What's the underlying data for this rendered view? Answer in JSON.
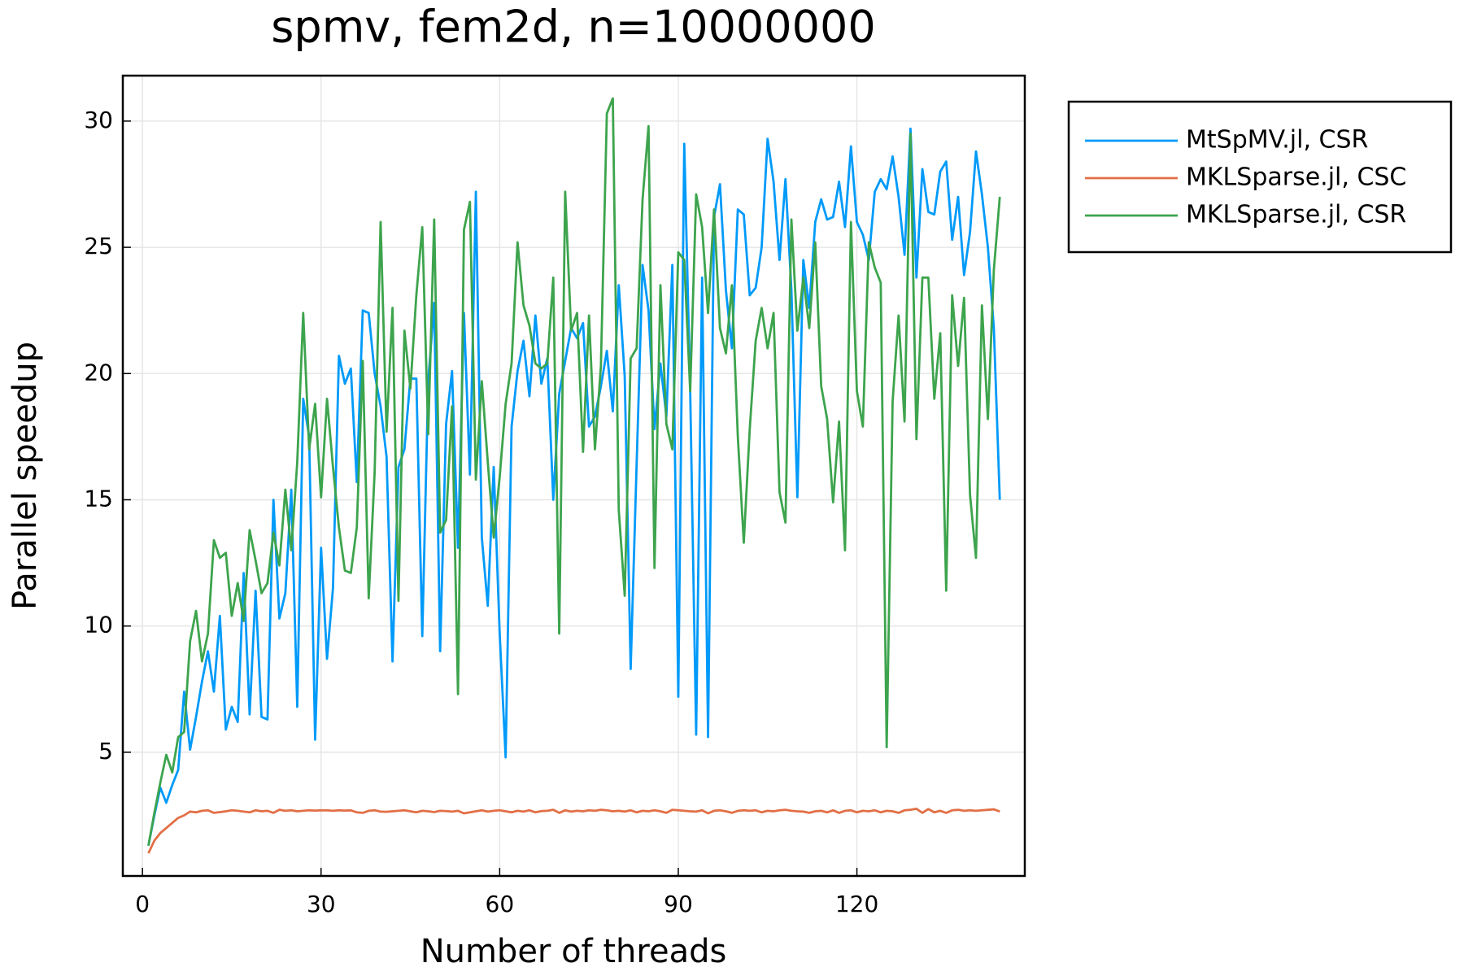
{
  "chart_data": {
    "type": "line",
    "title": "spmv, fem2d, n=10000000",
    "xlabel": "Number of threads",
    "ylabel": "Parallel speedup",
    "x": [
      1,
      2,
      3,
      4,
      5,
      6,
      7,
      8,
      9,
      10,
      11,
      12,
      13,
      14,
      15,
      16,
      17,
      18,
      19,
      20,
      21,
      22,
      23,
      24,
      25,
      26,
      27,
      28,
      29,
      30,
      31,
      32,
      33,
      34,
      35,
      36,
      37,
      38,
      39,
      40,
      41,
      42,
      43,
      44,
      45,
      46,
      47,
      48,
      49,
      50,
      51,
      52,
      53,
      54,
      55,
      56,
      57,
      58,
      59,
      60,
      61,
      62,
      63,
      64,
      65,
      66,
      67,
      68,
      69,
      70,
      71,
      72,
      73,
      74,
      75,
      76,
      77,
      78,
      79,
      80,
      81,
      82,
      83,
      84,
      85,
      86,
      87,
      88,
      89,
      90,
      91,
      92,
      93,
      94,
      95,
      96,
      97,
      98,
      99,
      100,
      101,
      102,
      103,
      104,
      105,
      106,
      107,
      108,
      109,
      110,
      111,
      112,
      113,
      114,
      115,
      116,
      117,
      118,
      119,
      120,
      121,
      122,
      123,
      124,
      125,
      126,
      127,
      128,
      129,
      130,
      131,
      132,
      133,
      134,
      135,
      136,
      137,
      138,
      139,
      140,
      141,
      142,
      143,
      144
    ],
    "series": [
      {
        "name": "MtSpMV.jl, CSR",
        "color": "#009af9",
        "values": [
          1.3,
          2.5,
          3.6,
          3.0,
          3.7,
          4.3,
          7.4,
          5.1,
          6.4,
          7.8,
          9.0,
          7.4,
          10.4,
          5.9,
          6.8,
          6.2,
          12.1,
          6.5,
          11.4,
          6.4,
          6.3,
          15.0,
          10.3,
          11.3,
          15.4,
          6.8,
          19.0,
          17.5,
          5.5,
          13.1,
          8.7,
          11.5,
          20.7,
          19.6,
          20.2,
          15.7,
          22.5,
          22.4,
          20.0,
          18.7,
          16.7,
          8.6,
          16.3,
          17.0,
          19.8,
          19.8,
          9.6,
          19.7,
          22.8,
          9.0,
          18.0,
          20.1,
          13.1,
          22.4,
          16.0,
          27.2,
          13.5,
          10.8,
          16.3,
          9.7,
          4.8,
          17.9,
          20.1,
          21.3,
          19.1,
          22.3,
          19.6,
          20.6,
          15.0,
          19.2,
          20.5,
          21.8,
          21.4,
          22.0,
          17.9,
          18.3,
          19.5,
          20.9,
          18.5,
          23.5,
          19.9,
          8.3,
          16.4,
          24.3,
          22.5,
          17.8,
          20.4,
          18.3,
          24.3,
          7.2,
          29.1,
          19.3,
          5.7,
          23.8,
          5.6,
          26.2,
          27.5,
          23.3,
          21.0,
          26.5,
          26.3,
          23.1,
          23.4,
          25.0,
          29.3,
          27.6,
          24.5,
          27.7,
          23.3,
          15.1,
          24.5,
          22.6,
          26.0,
          26.9,
          26.1,
          26.2,
          27.6,
          25.8,
          29.0,
          26.0,
          25.5,
          24.5,
          27.2,
          27.7,
          27.3,
          28.6,
          27.0,
          24.7,
          29.7,
          23.8,
          28.1,
          26.4,
          26.3,
          28.0,
          28.4,
          25.3,
          27.0,
          23.9,
          25.6,
          28.8,
          27.1,
          25.0,
          21.8,
          15.0
        ]
      },
      {
        "name": "MKLSparse.jl, CSC",
        "color": "#e26f46",
        "values": [
          1.0,
          1.5,
          1.8,
          2.0,
          2.2,
          2.4,
          2.5,
          2.65,
          2.62,
          2.68,
          2.7,
          2.6,
          2.63,
          2.66,
          2.7,
          2.68,
          2.65,
          2.62,
          2.7,
          2.66,
          2.68,
          2.6,
          2.72,
          2.68,
          2.7,
          2.66,
          2.68,
          2.7,
          2.69,
          2.7,
          2.7,
          2.68,
          2.7,
          2.69,
          2.7,
          2.62,
          2.6,
          2.68,
          2.7,
          2.65,
          2.64,
          2.66,
          2.68,
          2.7,
          2.66,
          2.62,
          2.68,
          2.66,
          2.63,
          2.68,
          2.67,
          2.65,
          2.68,
          2.58,
          2.62,
          2.66,
          2.7,
          2.65,
          2.68,
          2.7,
          2.66,
          2.62,
          2.68,
          2.65,
          2.7,
          2.62,
          2.67,
          2.68,
          2.72,
          2.6,
          2.7,
          2.65,
          2.68,
          2.66,
          2.7,
          2.68,
          2.72,
          2.7,
          2.66,
          2.68,
          2.65,
          2.7,
          2.62,
          2.68,
          2.66,
          2.7,
          2.66,
          2.6,
          2.72,
          2.7,
          2.68,
          2.66,
          2.65,
          2.7,
          2.58,
          2.68,
          2.7,
          2.66,
          2.6,
          2.68,
          2.7,
          2.68,
          2.7,
          2.62,
          2.68,
          2.66,
          2.7,
          2.72,
          2.68,
          2.66,
          2.65,
          2.6,
          2.66,
          2.68,
          2.62,
          2.7,
          2.6,
          2.68,
          2.7,
          2.62,
          2.68,
          2.66,
          2.7,
          2.62,
          2.68,
          2.66,
          2.6,
          2.7,
          2.72,
          2.76,
          2.6,
          2.75,
          2.62,
          2.68,
          2.6,
          2.7,
          2.72,
          2.68,
          2.7,
          2.68,
          2.7,
          2.72,
          2.74,
          2.65
        ]
      },
      {
        "name": "MKLSparse.jl, CSR",
        "color": "#3da44d",
        "values": [
          1.3,
          2.6,
          3.8,
          4.9,
          4.2,
          5.6,
          5.8,
          9.4,
          10.6,
          8.6,
          9.7,
          13.4,
          12.7,
          12.9,
          10.4,
          11.7,
          10.2,
          13.8,
          12.6,
          11.3,
          11.7,
          13.7,
          12.4,
          15.4,
          13.0,
          16.5,
          22.4,
          17.0,
          18.8,
          15.1,
          19.0,
          16.3,
          13.9,
          12.2,
          12.1,
          13.9,
          20.5,
          11.1,
          16.1,
          26.0,
          17.7,
          22.6,
          11.0,
          21.7,
          19.4,
          23.1,
          25.8,
          17.6,
          26.1,
          13.7,
          14.2,
          18.7,
          7.3,
          25.7,
          26.8,
          15.8,
          19.7,
          16.5,
          13.5,
          15.9,
          18.8,
          20.4,
          25.2,
          22.7,
          21.9,
          20.4,
          20.2,
          20.4,
          23.8,
          9.7,
          27.2,
          21.7,
          22.4,
          16.9,
          22.3,
          17.0,
          20.3,
          30.3,
          30.9,
          14.6,
          11.2,
          20.6,
          21.0,
          26.9,
          29.8,
          12.3,
          23.5,
          18.0,
          17.0,
          24.8,
          24.5,
          19.3,
          27.1,
          25.8,
          22.4,
          26.5,
          21.8,
          20.8,
          23.5,
          17.5,
          13.3,
          17.8,
          21.3,
          22.6,
          21.0,
          22.4,
          15.3,
          14.1,
          26.1,
          21.7,
          23.8,
          21.8,
          25.2,
          19.5,
          18.2,
          14.9,
          18.1,
          13.0,
          26.0,
          19.3,
          17.9,
          25.2,
          24.2,
          23.6,
          5.2,
          18.9,
          22.3,
          18.1,
          29.5,
          17.4,
          23.8,
          23.8,
          19.0,
          21.6,
          11.4,
          23.1,
          20.3,
          23.0,
          15.2,
          12.7,
          22.7,
          18.2,
          24.1,
          27.0
        ]
      }
    ],
    "xlim": [
      -3.3,
      148.2
    ],
    "ylim": [
      0.1,
      31.8
    ],
    "xticks": [
      0,
      30,
      60,
      90,
      120
    ],
    "yticks": [
      5,
      10,
      15,
      20,
      25,
      30
    ],
    "grid": true,
    "legend": "outer-right"
  }
}
